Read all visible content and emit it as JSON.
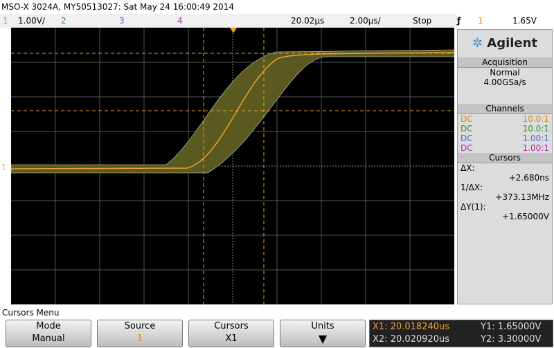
{
  "header": {
    "title": "MSO-X 3024A, MY50513027: Sat May 24 16:00:49 2014"
  },
  "status": {
    "ch1": "1",
    "ch1_scale": "1.00V/",
    "ch2": "2",
    "ch3": "3",
    "ch4": "4",
    "time_ref": "20.02µs",
    "time_scale": "2.00µs/",
    "run": "Stop",
    "trig_src": "1",
    "trig_level": "1.65V"
  },
  "side": {
    "brand": "Agilent",
    "acq_title": "Acquisition",
    "acq_mode": "Normal",
    "acq_rate": "4.00GSa/s",
    "ch_title": "Channels",
    "channels": [
      {
        "coupling": "DC",
        "probe": "10.0:1"
      },
      {
        "coupling": "DC",
        "probe": "10.0:1"
      },
      {
        "coupling": "DC",
        "probe": "1.00:1"
      },
      {
        "coupling": "DC",
        "probe": "1.00:1"
      }
    ],
    "cur_title": "Cursors",
    "dx_label": "ΔX:",
    "dx": "+2.680ns",
    "inv_label": "1/ΔX:",
    "inv": "+373.13MHz",
    "dy_label": "ΔY(1):",
    "dy": "+1.65000V"
  },
  "menu": {
    "title": "Cursors Menu",
    "keys": [
      {
        "top": "Mode",
        "bottom": "Manual"
      },
      {
        "top": "Source",
        "bottom": "1"
      },
      {
        "top": "Cursors",
        "bottom": "X1"
      },
      {
        "top": "Units"
      }
    ],
    "readout": {
      "x1": "X1: 20.018240us",
      "x2": "X2: 20.020920us",
      "y1": "Y1: 1.65000V",
      "y2": "Y2: 3.30000V"
    }
  }
}
